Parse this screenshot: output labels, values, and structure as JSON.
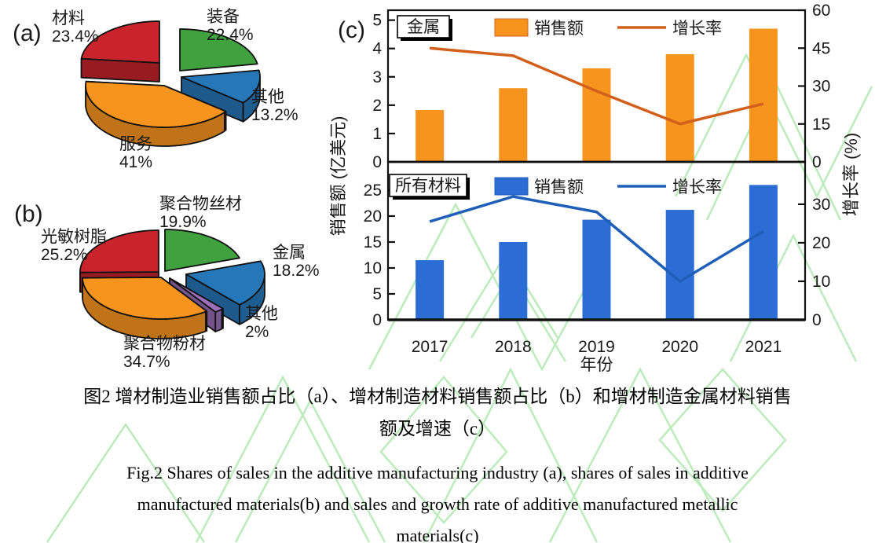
{
  "caption": {
    "zh_line1": "图2  增材制造业销售额占比（a）、增材制造材料销售额占比（b）和增材制造金属材料销售",
    "zh_line2": "额及增速（c）",
    "en_line1": "Fig.2 Shares of sales in the additive manufacturing industry (a), shares of sales in additive",
    "en_line2": "manufactured materials(b) and sales and growth rate of additive manufactured metallic",
    "en_line3": "materials(c)"
  },
  "colors": {
    "pie_red": "#C9242B",
    "pie_green": "#3FA23F",
    "pie_blue": "#2677B8",
    "pie_orange": "#F7941E",
    "pie_purple": "#9B6FB9",
    "bar_orange": "#F7941E",
    "line_orange": "#D2601A",
    "bar_blue": "#2B6CD5",
    "line_blue": "#1F5FB8",
    "watermark_green": "#BCEBBC",
    "axis_black": "#111111"
  },
  "c_axes": {
    "ylabel_left": "销售额 (亿美元)",
    "ylabel_right": "增长率 (%)",
    "xlabel": "年份"
  },
  "chart_data": [
    {
      "id": "pie-a",
      "type": "pie",
      "panel_label": "(a)",
      "title": "增材制造业销售额占比",
      "slices": [
        {
          "label": "装备",
          "pct_text": "22.4%",
          "value": 22.4,
          "color": "#3FA23F"
        },
        {
          "label": "其他",
          "pct_text": "13.2%",
          "value": 13.2,
          "color": "#2677B8"
        },
        {
          "label": "服务",
          "pct_text": "41%",
          "value": 41.0,
          "color": "#F7941E"
        },
        {
          "label": "材料",
          "pct_text": "23.4%",
          "value": 23.4,
          "color": "#C9242B"
        }
      ]
    },
    {
      "id": "pie-b",
      "type": "pie",
      "panel_label": "(b)",
      "title": "增材制造材料销售额占比",
      "slices": [
        {
          "label": "聚合物丝材",
          "pct_text": "19.9%",
          "value": 19.9,
          "color": "#3FA23F"
        },
        {
          "label": "金属",
          "pct_text": "18.2%",
          "value": 18.2,
          "color": "#2677B8"
        },
        {
          "label": "其他",
          "pct_text": "2%",
          "value": 2.0,
          "color": "#9B6FB9"
        },
        {
          "label": "聚合物粉材",
          "pct_text": "34.7%",
          "value": 34.7,
          "color": "#F7941E"
        },
        {
          "label": "光敏树脂",
          "pct_text": "25.2%",
          "value": 25.2,
          "color": "#C9242B"
        }
      ]
    },
    {
      "id": "c-top",
      "type": "bar",
      "panel_label": "(c)",
      "box_label": "金属",
      "categories": [
        "2017",
        "2018",
        "2019",
        "2020",
        "2021"
      ],
      "series": [
        {
          "name": "销售额",
          "kind": "bar",
          "axis": "left",
          "color": "#F7941E",
          "edge": "#D2601A",
          "values": [
            1.83,
            2.6,
            3.3,
            3.8,
            4.7
          ]
        },
        {
          "name": "增长率",
          "kind": "line",
          "axis": "right",
          "color": "#D2601A",
          "values": [
            45,
            42,
            28,
            15,
            23
          ]
        }
      ],
      "left_axis": {
        "ticks": [
          0,
          1,
          2,
          3,
          4,
          5
        ],
        "max": 5.35
      },
      "right_axis": {
        "ticks": [
          0,
          15,
          30,
          45,
          60
        ],
        "max": 60
      }
    },
    {
      "id": "c-bottom",
      "type": "bar",
      "box_label": "所有材料",
      "categories": [
        "2017",
        "2018",
        "2019",
        "2020",
        "2021"
      ],
      "series": [
        {
          "name": "销售额",
          "kind": "bar",
          "axis": "left",
          "color": "#2B6CD5",
          "edge": "#1F5FB8",
          "values": [
            11.5,
            15,
            19.3,
            21.2,
            26
          ]
        },
        {
          "name": "增长率",
          "kind": "line",
          "axis": "right",
          "color": "#1F5FB8",
          "values": [
            25.5,
            32,
            28,
            10,
            23
          ]
        }
      ],
      "left_axis": {
        "ticks": [
          0,
          5,
          10,
          15,
          20,
          25
        ],
        "max": 30.45
      },
      "right_axis": {
        "ticks": [
          0,
          10,
          20,
          30
        ],
        "max": 41
      },
      "xlabel": "年份"
    }
  ]
}
